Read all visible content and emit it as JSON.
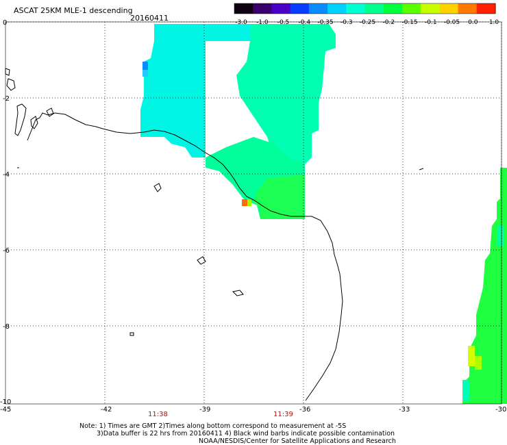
{
  "title": "ASCAT 25KM MLE-1 descending",
  "date": "20160411",
  "colorbar": {
    "labels": [
      "-3.0",
      "-1.0",
      "-0.5",
      "-0.4",
      "-0.35",
      "-0.3",
      "-0.25",
      "-0.2",
      "-0.15",
      "-0.1",
      "-0.05",
      "0.0",
      "1.0"
    ],
    "colors": [
      "#0d0010",
      "#3a006e",
      "#4b00c8",
      "#0a3cff",
      "#0a8cff",
      "#00d2ff",
      "#00ffd2",
      "#00ff8c",
      "#00ff3c",
      "#5aff00",
      "#c8ff00",
      "#ffd200",
      "#ff7800",
      "#ff1e00"
    ]
  },
  "axes": {
    "lon_ticks": [
      "-45",
      "-42",
      "-39",
      "-36",
      "-33",
      "-30"
    ],
    "lat_ticks": [
      "0",
      "-2",
      "-4",
      "-6",
      "-8",
      "-10"
    ]
  },
  "times": [
    {
      "label": "11:38"
    },
    {
      "label": "11:39"
    }
  ],
  "notes": [
    "Note: 1) Times are GMT 2)Times along bottom correspond to measurement at -5S",
    "3)Data buffer is 22 hrs from 20160411 4) Black wind barbs indicate possible contamination",
    "NOAA/NESDIS/Center for Satellite Applications and Research"
  ]
}
